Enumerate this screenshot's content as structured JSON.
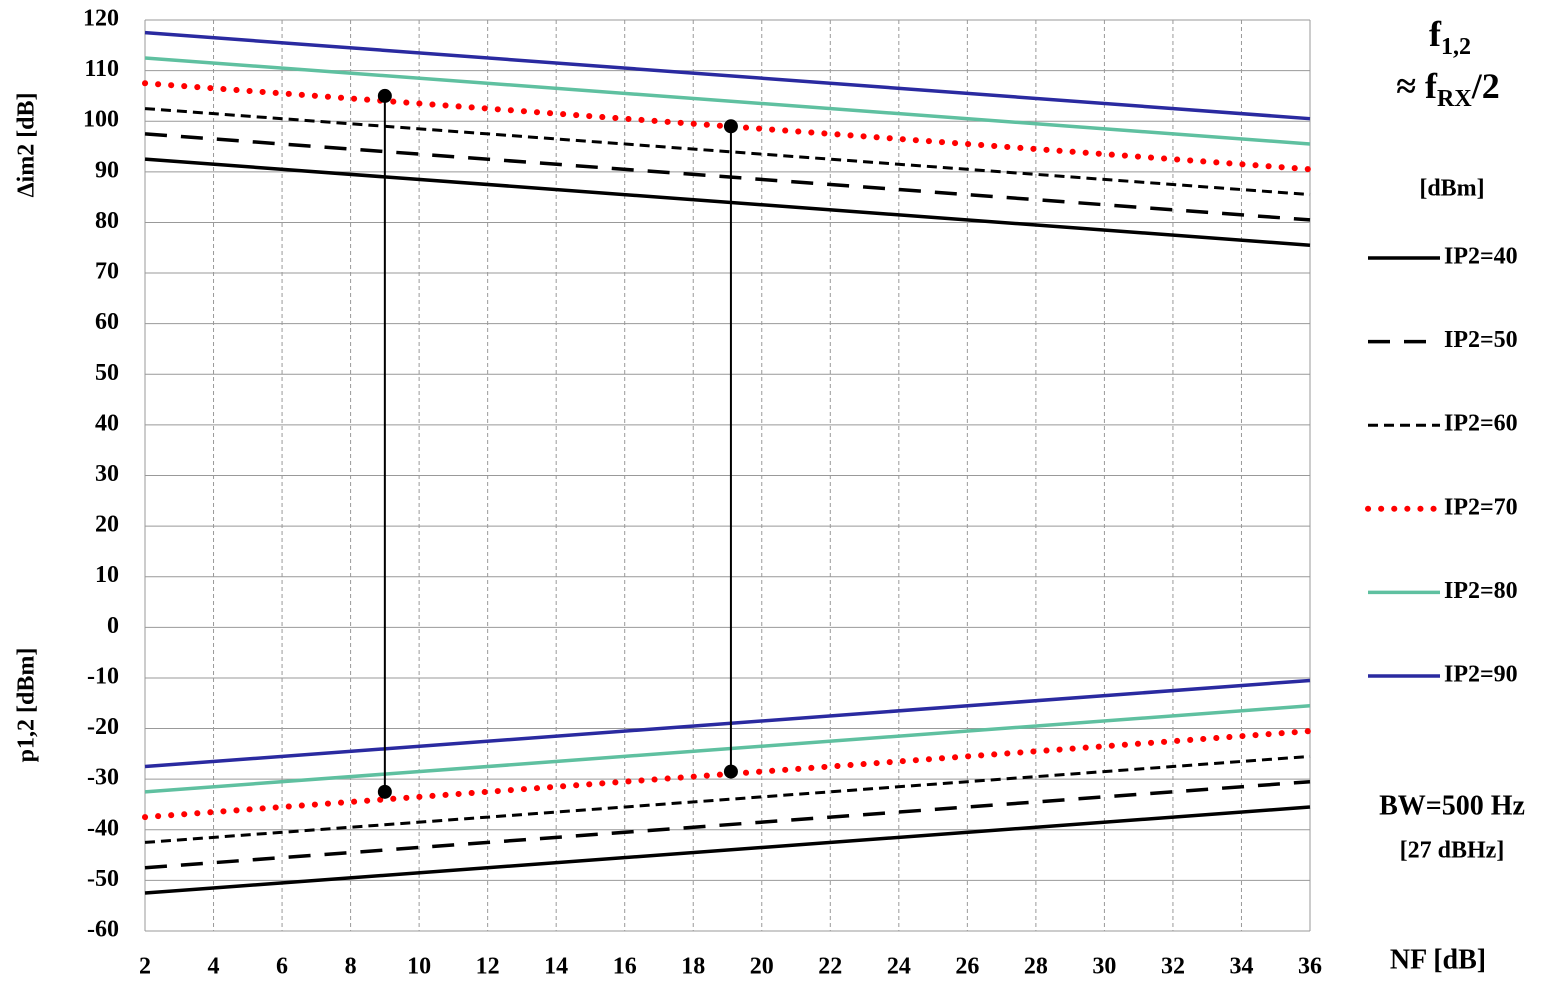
{
  "chart_data": {
    "type": "line",
    "x_label": "NF [dB]",
    "y_label_top": "Δim2 [dB]",
    "y_label_bottom": "p1,2 [dBm]",
    "x": [
      2,
      36
    ],
    "xlim": [
      2,
      36
    ],
    "xticks": [
      2,
      4,
      6,
      8,
      10,
      12,
      14,
      16,
      18,
      20,
      22,
      24,
      26,
      28,
      30,
      32,
      34,
      36
    ],
    "ylim": [
      -60,
      120
    ],
    "yticks": [
      -60,
      -50,
      -40,
      -30,
      -20,
      -10,
      0,
      10,
      20,
      30,
      40,
      50,
      60,
      70,
      80,
      90,
      100,
      110,
      120
    ],
    "grid": true,
    "legend_title": "[dBm]",
    "series": [
      {
        "name": "IP2=40",
        "color": "#000000",
        "dash": "solid",
        "values": [
          92.5,
          75.5
        ],
        "p_values": [
          -52.5,
          -35.5
        ]
      },
      {
        "name": "IP2=50",
        "color": "#000000",
        "dash": "long",
        "values": [
          97.5,
          80.5
        ],
        "p_values": [
          -47.5,
          -30.5
        ]
      },
      {
        "name": "IP2=60",
        "color": "#000000",
        "dash": "short",
        "values": [
          102.5,
          85.5
        ],
        "p_values": [
          -42.5,
          -25.5
        ]
      },
      {
        "name": "IP2=70",
        "color": "#ff0000",
        "dash": "dot",
        "values": [
          107.5,
          90.5
        ],
        "p_values": [
          -37.5,
          -20.5
        ]
      },
      {
        "name": "IP2=80",
        "color": "#5fc0a0",
        "dash": "solid",
        "values": [
          112.5,
          95.5
        ],
        "p_values": [
          -32.5,
          -15.5
        ]
      },
      {
        "name": "IP2=90",
        "color": "#2a2aa0",
        "dash": "solid",
        "values": [
          117.5,
          100.5
        ],
        "p_values": [
          -27.5,
          -10.5
        ]
      }
    ],
    "markers": [
      {
        "x": 9,
        "top": 105,
        "bottom": -32.5
      },
      {
        "x": 19.1,
        "top": 99,
        "bottom": -28.5
      }
    ],
    "title_parts": [
      "f",
      "1,2",
      "≈ f",
      "RX",
      "/2"
    ],
    "bw_label": "BW=500 Hz",
    "bw_sub": "[27 dBHz]"
  }
}
